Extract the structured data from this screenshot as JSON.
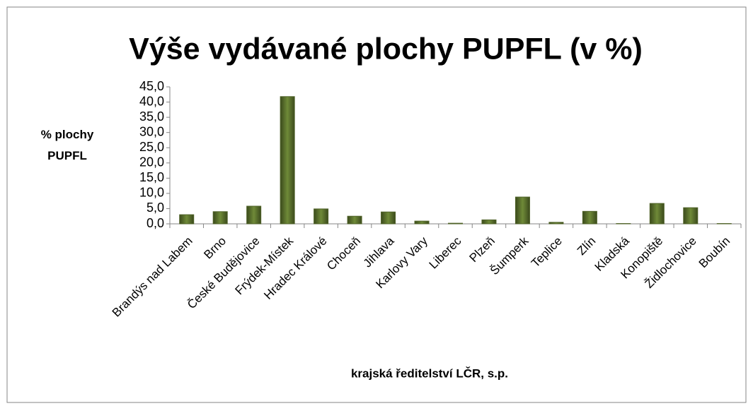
{
  "chart_data": {
    "type": "bar",
    "title": "Výše vydávané plochy PUPFL (v %)",
    "xlabel": "krajská ředitelství LČR, s.p.",
    "ylabel": "% plochy PUPFL",
    "categories": [
      "Brandýs nad Labem",
      "Brno",
      "České Budějovice",
      "Frýdek-Místek",
      "Hradec Králové",
      "Choceň",
      "Jihlava",
      "Karlovy Vary",
      "Liberec",
      "Plzeň",
      "Šumperk",
      "Teplice",
      "Zlín",
      "Kladská",
      "Konopiště",
      "Židlochovice",
      "Boubín"
    ],
    "values": [
      3.0,
      4.0,
      5.8,
      41.8,
      4.9,
      2.5,
      3.9,
      0.9,
      0.2,
      1.3,
      8.8,
      0.5,
      4.1,
      0.1,
      6.7,
      5.3,
      0.1
    ],
    "color": "#4f6228",
    "ylim": [
      0,
      45
    ],
    "yticks": [
      {
        "value": 0,
        "label": "0,0"
      },
      {
        "value": 5,
        "label": "5,0"
      },
      {
        "value": 10,
        "label": "10,0"
      },
      {
        "value": 15,
        "label": "15,0"
      },
      {
        "value": 20,
        "label": "20,0"
      },
      {
        "value": 25,
        "label": "25,0"
      },
      {
        "value": 30,
        "label": "30,0"
      },
      {
        "value": 35,
        "label": "35,0"
      },
      {
        "value": 40,
        "label": "40,0"
      },
      {
        "value": 45,
        "label": "45,0"
      }
    ],
    "grid": false
  }
}
